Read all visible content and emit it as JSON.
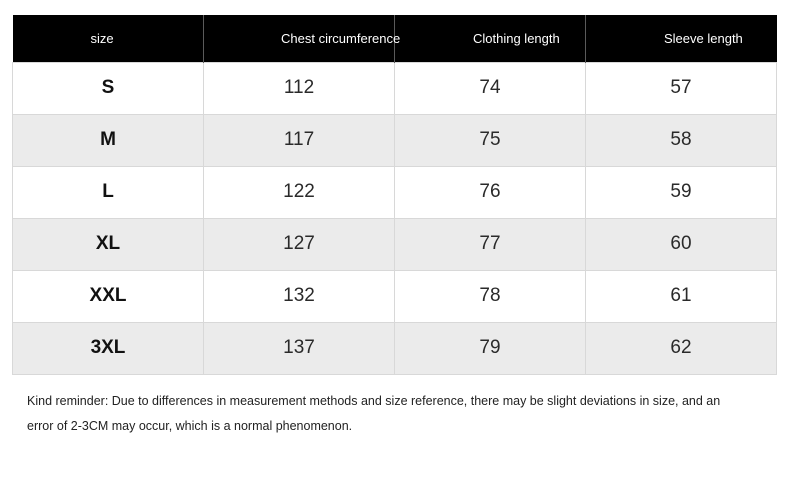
{
  "table": {
    "headers": {
      "size": "size",
      "chest": "Chest circumference",
      "clothing_length": "Clothing length",
      "sleeve_length": "Sleeve length"
    },
    "rows": [
      {
        "size": "S",
        "chest": "112",
        "clothing_length": "74",
        "sleeve_length": "57"
      },
      {
        "size": "M",
        "chest": "117",
        "clothing_length": "75",
        "sleeve_length": "58"
      },
      {
        "size": "L",
        "chest": "122",
        "clothing_length": "76",
        "sleeve_length": "59"
      },
      {
        "size": "XL",
        "chest": "127",
        "clothing_length": "77",
        "sleeve_length": "60"
      },
      {
        "size": "XXL",
        "chest": "132",
        "clothing_length": "78",
        "sleeve_length": "61"
      },
      {
        "size": "3XL",
        "chest": "137",
        "clothing_length": "79",
        "sleeve_length": "62"
      }
    ]
  },
  "note": {
    "line1": "Kind reminder: Due to differences in measurement methods and size reference, there may be slight deviations in size, and an",
    "line2": "error of 2-3CM may occur, which is a normal phenomenon."
  },
  "colors": {
    "header_bg": "#000000",
    "header_text": "#ffffff",
    "row_alt_bg": "#ebebeb",
    "row_bg": "#ffffff"
  }
}
